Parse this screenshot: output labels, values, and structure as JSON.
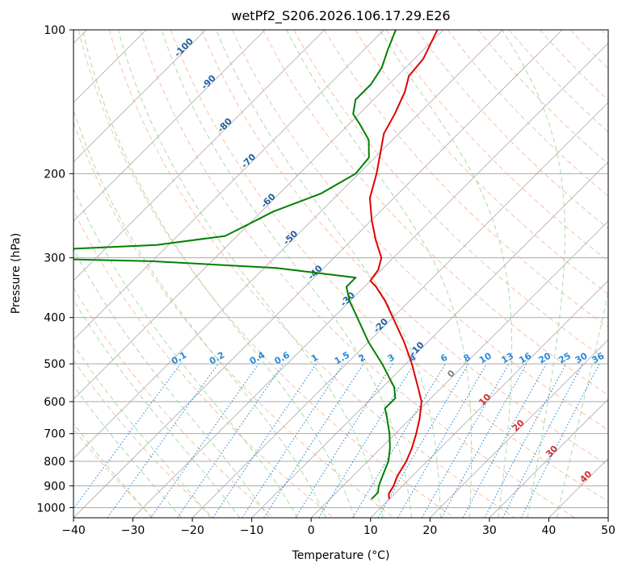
{
  "chart_data": {
    "type": "line",
    "title": "wetPf2_S206.2026.106.17.29.E26",
    "xlabel": "Temperature (°C)",
    "ylabel": "Pressure (hPa)",
    "xlim": [
      -40,
      50
    ],
    "ylim": [
      1050,
      100
    ],
    "y_scale": "log",
    "x_ticks": [
      "−40",
      "−30",
      "−20",
      "−10",
      "0",
      "10",
      "20",
      "30",
      "40",
      "50"
    ],
    "y_ticks": [
      "100",
      "200",
      "300",
      "400",
      "500",
      "600",
      "700",
      "800",
      "900",
      "1000"
    ],
    "grid": true,
    "skew": "skew-T log-P",
    "colors": {
      "temperature": "#e00000",
      "dewpoint": "#008000",
      "isotherm": "#a9a9a9",
      "dry_adiabat": "#f4a582",
      "moist_adiabat": "#8ccf8c",
      "mixing_ratio": "#2a8ad8",
      "isotherm_label": "#1f5f9f",
      "dry_adiabat_label": "#d32f2f",
      "zero_label": "#808080"
    },
    "series": [
      {
        "id": "temperature",
        "points": [
          {
            "p": 960,
            "t": 10
          },
          {
            "p": 935,
            "t": 9
          },
          {
            "p": 900,
            "t": 8.5
          },
          {
            "p": 860,
            "t": 7.5
          },
          {
            "p": 800,
            "t": 6.5
          },
          {
            "p": 750,
            "t": 5.2
          },
          {
            "p": 700,
            "t": 3.5
          },
          {
            "p": 650,
            "t": 1.5
          },
          {
            "p": 600,
            "t": -1
          },
          {
            "p": 560,
            "t": -4
          },
          {
            "p": 500,
            "t": -9
          },
          {
            "p": 450,
            "t": -14
          },
          {
            "p": 400,
            "t": -20
          },
          {
            "p": 370,
            "t": -24
          },
          {
            "p": 345,
            "t": -28
          },
          {
            "p": 335,
            "t": -30
          },
          {
            "p": 318,
            "t": -30.5
          },
          {
            "p": 300,
            "t": -32
          },
          {
            "p": 275,
            "t": -36
          },
          {
            "p": 250,
            "t": -40
          },
          {
            "p": 225,
            "t": -44
          },
          {
            "p": 200,
            "t": -47
          },
          {
            "p": 180,
            "t": -50
          },
          {
            "p": 165,
            "t": -52.5
          },
          {
            "p": 150,
            "t": -54
          },
          {
            "p": 135,
            "t": -56
          },
          {
            "p": 125,
            "t": -58
          },
          {
            "p": 115,
            "t": -58.5
          },
          {
            "p": 100,
            "t": -61
          }
        ]
      },
      {
        "id": "dewpoint",
        "points": [
          {
            "p": 960,
            "t": 7
          },
          {
            "p": 930,
            "t": 7
          },
          {
            "p": 900,
            "t": 6
          },
          {
            "p": 860,
            "t": 5
          },
          {
            "p": 800,
            "t": 3.5
          },
          {
            "p": 750,
            "t": 1.5
          },
          {
            "p": 700,
            "t": -1
          },
          {
            "p": 650,
            "t": -4
          },
          {
            "p": 620,
            "t": -6
          },
          {
            "p": 590,
            "t": -6
          },
          {
            "p": 560,
            "t": -8
          },
          {
            "p": 500,
            "t": -14
          },
          {
            "p": 450,
            "t": -20
          },
          {
            "p": 400,
            "t": -26
          },
          {
            "p": 370,
            "t": -30
          },
          {
            "p": 345,
            "t": -33
          },
          {
            "p": 330,
            "t": -33
          },
          {
            "p": 315,
            "t": -48
          },
          {
            "p": 305,
            "t": -70
          },
          {
            "p": 301,
            "t": -90
          },
          {
            "p": 299,
            "t": -100
          },
          {
            "p": 289,
            "t": -100
          },
          {
            "p": 287,
            "t": -85
          },
          {
            "p": 282,
            "t": -72
          },
          {
            "p": 270,
            "t": -62
          },
          {
            "p": 255,
            "t": -60
          },
          {
            "p": 240,
            "t": -58
          },
          {
            "p": 220,
            "t": -53
          },
          {
            "p": 200,
            "t": -50.5
          },
          {
            "p": 185,
            "t": -51
          },
          {
            "p": 170,
            "t": -54
          },
          {
            "p": 158,
            "t": -58
          },
          {
            "p": 150,
            "t": -61
          },
          {
            "p": 140,
            "t": -63
          },
          {
            "p": 130,
            "t": -63
          },
          {
            "p": 120,
            "t": -64
          },
          {
            "p": 110,
            "t": -66
          },
          {
            "p": 100,
            "t": -68
          }
        ]
      }
    ],
    "isotherm_labels": [
      {
        "text": "-100",
        "t": -100,
        "p": 110
      },
      {
        "text": "-90",
        "t": -90,
        "p": 130
      },
      {
        "text": "-80",
        "t": -80,
        "p": 160
      },
      {
        "text": "-70",
        "t": -70,
        "p": 190
      },
      {
        "text": "-60",
        "t": -60,
        "p": 230
      },
      {
        "text": "-50",
        "t": -50,
        "p": 275
      },
      {
        "text": "-40",
        "t": -40,
        "p": 325
      },
      {
        "text": "-30",
        "t": -30,
        "p": 370
      },
      {
        "text": "-20",
        "t": -20,
        "p": 420
      },
      {
        "text": "-10",
        "t": -10,
        "p": 470
      },
      {
        "text": "0",
        "t": 0,
        "p": 530
      },
      {
        "text": "10",
        "t": 10,
        "p": 600
      },
      {
        "text": "20",
        "t": 20,
        "p": 680
      },
      {
        "text": "30",
        "t": 30,
        "p": 770
      },
      {
        "text": "40",
        "t": 40,
        "p": 870
      }
    ],
    "mixing_ratio_labels": [
      "0.1",
      "0.2",
      "0.4",
      "0.6",
      "1",
      "1.5",
      "2",
      "3",
      "4",
      "6",
      "8",
      "10",
      "13",
      "16",
      "20",
      "25",
      "30",
      "36"
    ]
  }
}
